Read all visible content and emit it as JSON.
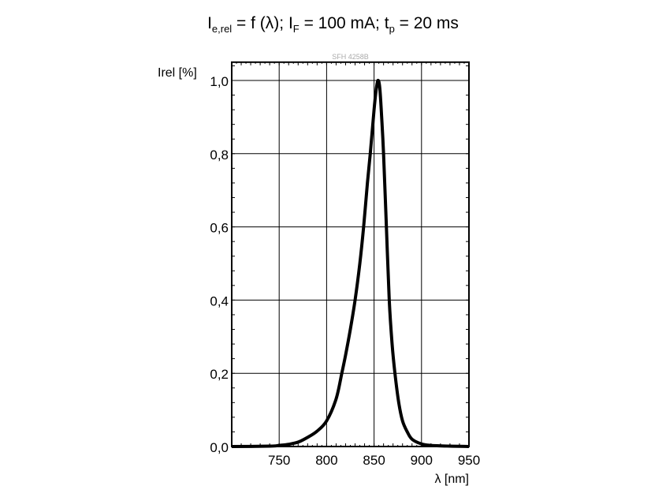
{
  "chart_data": {
    "type": "line",
    "title": {
      "main": "I",
      "sub1": "e,rel",
      "mid": " = f (λ); I",
      "sub2": "F",
      "mid2": " = 100 mA; t",
      "sub3": "p",
      "end": " = 20 ms"
    },
    "watermark": "SFH 4258B",
    "xlabel": "λ [nm]",
    "ylabel": "Irel [%]",
    "xlim": [
      700,
      950
    ],
    "ylim": [
      0,
      1.05
    ],
    "xticks": [
      750,
      800,
      850,
      900,
      950
    ],
    "xtick_labels": [
      "750",
      "800",
      "850",
      "900",
      "950"
    ],
    "yticks": [
      0,
      0.2,
      0.4,
      0.6,
      0.8,
      1.0
    ],
    "ytick_labels": [
      "0,0",
      "0,2",
      "0,4",
      "0,6",
      "0,8",
      "1,0"
    ],
    "grid": true,
    "line_color": "#000000",
    "series": [
      {
        "x": [
          700,
          740,
          750,
          760,
          770,
          780,
          790,
          800,
          810,
          816,
          820,
          825,
          830,
          835,
          839,
          843,
          846,
          850,
          852,
          854,
          856,
          858,
          860,
          863,
          866,
          869,
          872,
          876,
          880,
          885,
          890,
          900,
          910,
          930,
          950
        ],
        "y": [
          0,
          0.001,
          0.003,
          0.006,
          0.012,
          0.025,
          0.042,
          0.07,
          0.13,
          0.2,
          0.25,
          0.32,
          0.4,
          0.5,
          0.6,
          0.72,
          0.8,
          0.92,
          0.97,
          1.0,
          0.98,
          0.9,
          0.8,
          0.6,
          0.4,
          0.28,
          0.2,
          0.12,
          0.07,
          0.04,
          0.02,
          0.007,
          0.003,
          0.001,
          0
        ]
      }
    ]
  }
}
